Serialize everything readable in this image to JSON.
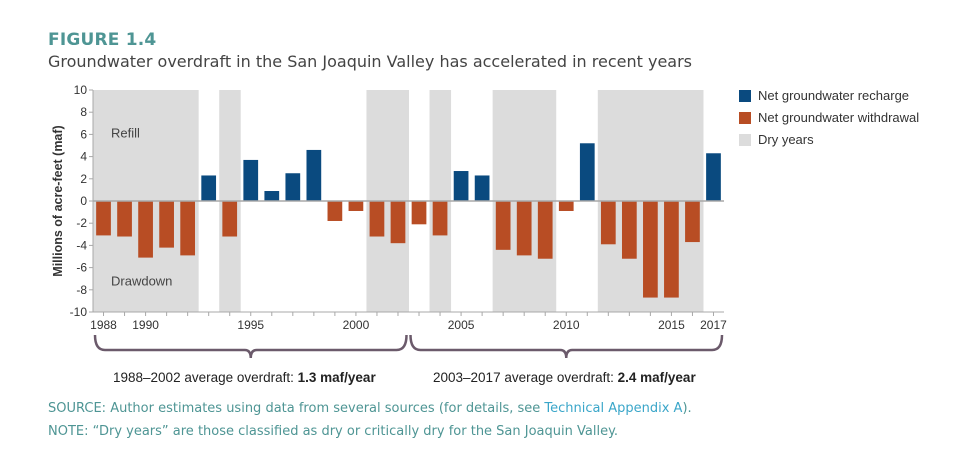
{
  "figure_label": "FIGURE 1.4",
  "figure_title": "Groundwater overdraft in the San Joaquin Valley has accelerated in recent years",
  "chart_data": {
    "type": "bar",
    "ylabel": "Millions of acre-feet (maf)",
    "ylim": [
      -10,
      10
    ],
    "yticks": [
      10,
      8,
      6,
      4,
      2,
      0,
      -2,
      -4,
      -6,
      -8,
      -10
    ],
    "x": [
      1988,
      1989,
      1990,
      1991,
      1992,
      1993,
      1994,
      1995,
      1996,
      1997,
      1998,
      1999,
      2000,
      2001,
      2002,
      2003,
      2004,
      2005,
      2006,
      2007,
      2008,
      2009,
      2010,
      2011,
      2012,
      2013,
      2014,
      2015,
      2016,
      2017
    ],
    "values": [
      -3.1,
      -3.2,
      -5.1,
      -4.2,
      -4.9,
      2.3,
      -3.2,
      3.7,
      0.9,
      2.5,
      4.6,
      -1.8,
      -0.9,
      -3.2,
      -3.8,
      -2.1,
      -3.1,
      2.7,
      2.3,
      -4.4,
      -4.9,
      -5.2,
      -0.9,
      5.2,
      -3.9,
      -5.2,
      -8.7,
      -8.7,
      -3.7,
      4.3
    ],
    "dry_years": [
      1988,
      1989,
      1990,
      1991,
      1992,
      1994,
      2001,
      2002,
      2004,
      2007,
      2008,
      2009,
      2012,
      2013,
      2014,
      2015,
      2016
    ],
    "xtick_labels": [
      {
        "year": 1988,
        "label": "1988"
      },
      {
        "year": 1990,
        "label": "1990"
      },
      {
        "year": 1995,
        "label": "1995"
      },
      {
        "year": 2000,
        "label": "2000"
      },
      {
        "year": 2005,
        "label": "2005"
      },
      {
        "year": 2010,
        "label": "2010"
      },
      {
        "year": 2015,
        "label": "2015"
      },
      {
        "year": 2017,
        "label": "2017"
      }
    ],
    "annotations": {
      "refill": "Refill",
      "drawdown": "Drawdown"
    },
    "legend": {
      "placement": "right",
      "recharge": "Net groundwater recharge",
      "withdrawal": "Net groundwater withdrawal",
      "dry": "Dry years"
    },
    "colors": {
      "recharge": "#0a4a7f",
      "withdrawal": "#b84d24",
      "dry": "#dcdcdc",
      "axis": "#a8a8a8"
    },
    "periods": [
      {
        "from": 1988,
        "to": 2002,
        "label": "1988–2002 average overdraft: ",
        "value": "1.3 maf/year"
      },
      {
        "from": 2003,
        "to": 2017,
        "label": "2003–2017 average overdraft: ",
        "value": "2.4 maf/year"
      }
    ]
  },
  "source": {
    "prefix": "SOURCE: Author estimates using data from several sources (for details, see ",
    "link": "Technical Appendix A",
    "suffix": ")."
  },
  "note": "NOTE: “Dry years” are those classified as dry or critically dry for the San Joaquin Valley."
}
